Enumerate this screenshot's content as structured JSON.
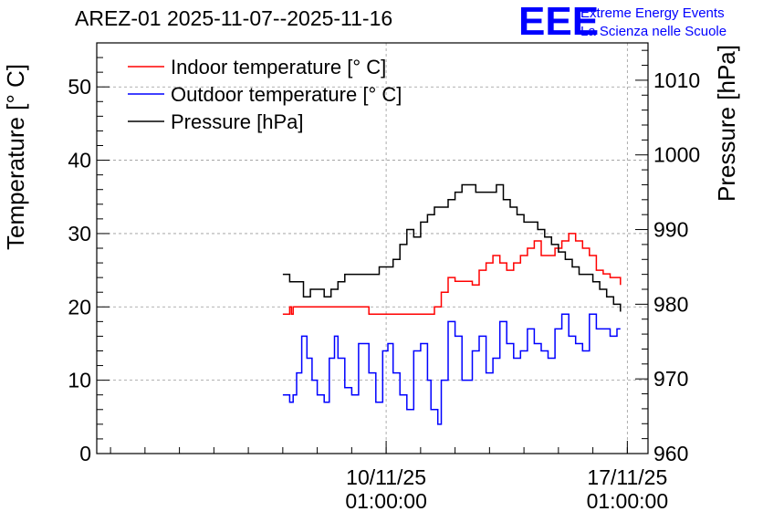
{
  "chart_data": {
    "type": "line",
    "title": "AREZ-01 2025-11-07--2025-11-16",
    "logo": {
      "text": "EEE",
      "line1": "Extreme Energy Events",
      "line2": "La Scienza nelle Scuole",
      "color": "#0000ff"
    },
    "ylabel": "Temperature [° C]",
    "ylabel_right": "Pressure [hPa]",
    "ylim": [
      0,
      56
    ],
    "ylim_right": [
      960,
      1015
    ],
    "yticks": [
      0,
      10,
      20,
      30,
      40,
      50
    ],
    "yticks_right": [
      960,
      970,
      980,
      990,
      1000,
      1010
    ],
    "xlim": [
      -5.4,
      10.6
    ],
    "xticks": [
      {
        "value": 3,
        "date": "10/11/25",
        "time": "01:00:00"
      },
      {
        "value": 10,
        "date": "17/11/25",
        "time": "01:00:00"
      }
    ],
    "grid": true,
    "legend": "top-left",
    "series": [
      {
        "name": "Indoor temperature [° C]",
        "color": "#ff0000",
        "axis": "left",
        "x": [
          0.0,
          0.1,
          0.2,
          0.25,
          0.3,
          0.4,
          0.5,
          1.0,
          1.5,
          2.0,
          2.5,
          3.0,
          3.5,
          3.8,
          4.0,
          4.2,
          4.4,
          4.6,
          4.8,
          5.0,
          5.5,
          5.7,
          5.9,
          6.1,
          6.3,
          6.5,
          6.7,
          6.9,
          7.1,
          7.3,
          7.5,
          7.7,
          7.9,
          8.1,
          8.3,
          8.5,
          8.7,
          8.9,
          9.1,
          9.3,
          9.5,
          9.7,
          9.8
        ],
        "values": [
          19,
          19,
          20,
          19,
          20,
          20,
          20,
          20,
          20,
          20,
          19,
          19,
          19,
          19,
          19,
          19,
          20,
          22,
          24,
          23.5,
          23,
          25,
          26,
          27,
          26,
          25,
          26,
          27,
          28,
          29,
          27,
          27,
          28,
          29,
          30,
          29,
          28,
          27,
          25,
          24.5,
          24,
          24,
          23
        ]
      },
      {
        "name": "Outdoor temperature [° C]",
        "color": "#0000ff",
        "axis": "left",
        "x": [
          0.0,
          0.1,
          0.2,
          0.3,
          0.4,
          0.55,
          0.7,
          0.85,
          1.0,
          1.2,
          1.35,
          1.5,
          1.6,
          1.8,
          2.0,
          2.2,
          2.35,
          2.5,
          2.7,
          2.9,
          3.05,
          3.2,
          3.4,
          3.6,
          3.8,
          4.0,
          4.2,
          4.3,
          4.5,
          4.6,
          4.8,
          5.0,
          5.2,
          5.5,
          5.7,
          5.9,
          6.1,
          6.3,
          6.5,
          6.7,
          6.9,
          7.1,
          7.3,
          7.5,
          7.7,
          7.9,
          8.1,
          8.3,
          8.5,
          8.7,
          8.9,
          9.1,
          9.3,
          9.5,
          9.7,
          9.8
        ],
        "values": [
          8,
          8,
          7,
          8,
          11,
          16,
          13,
          10,
          8,
          7,
          13,
          16,
          13,
          9,
          8,
          15,
          15,
          11,
          7,
          14,
          15,
          11,
          8,
          6,
          14,
          15,
          10,
          6,
          4,
          10,
          18,
          16,
          10,
          14,
          16,
          11,
          13,
          18,
          15,
          13,
          14,
          17,
          15,
          14,
          13,
          17,
          19,
          16,
          15,
          14,
          19,
          17,
          17,
          16,
          17,
          17
        ]
      },
      {
        "name": "Pressure [hPa]",
        "color": "#000000",
        "axis": "right",
        "x": [
          0.0,
          0.2,
          0.4,
          0.6,
          0.8,
          1.0,
          1.2,
          1.4,
          1.6,
          1.8,
          2.0,
          2.2,
          2.4,
          2.6,
          2.8,
          3.0,
          3.2,
          3.4,
          3.6,
          3.8,
          4.0,
          4.2,
          4.4,
          4.6,
          4.8,
          5.0,
          5.2,
          5.4,
          5.6,
          5.8,
          6.0,
          6.2,
          6.4,
          6.6,
          6.8,
          7.0,
          7.2,
          7.4,
          7.6,
          7.8,
          8.0,
          8.2,
          8.4,
          8.6,
          8.8,
          9.0,
          9.2,
          9.4,
          9.6,
          9.8
        ],
        "values": [
          984,
          983,
          983,
          981,
          982,
          982,
          981,
          982,
          983,
          984,
          984,
          984,
          984,
          984,
          985,
          985,
          986,
          988,
          990,
          989,
          991,
          992,
          993,
          993,
          994,
          995,
          996,
          996,
          995,
          995,
          995,
          996,
          994,
          993,
          992,
          991,
          991,
          990,
          989,
          988,
          987,
          986,
          985,
          984,
          984,
          983,
          982,
          981,
          980,
          979
        ]
      }
    ]
  }
}
